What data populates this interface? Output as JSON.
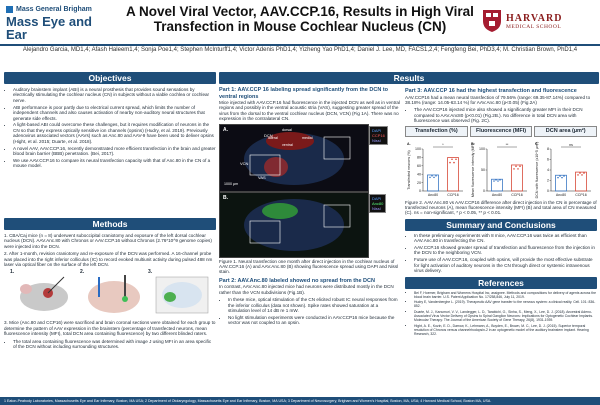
{
  "header": {
    "mgb_top": "Mass General Brigham",
    "mgb_bottom": "Mass Eye and Ear",
    "title": "A Novel Viral Vector, AAV.CCP.16, Results in High Viral Transfection in Mouse Cochlear Nucleus (CN)",
    "harvard_main": "HARVARD",
    "harvard_sub": "MEDICAL SCHOOL"
  },
  "authors": "Alejandro Garcia, MD1,4; Afash Haleem1,4; Sonja Poe1,4; Stephen McInturff1,4; Victor Adenis PhD1,4; Yizheng Yao PhD1,4; Daniel J. Lee, MD, FACS1,2,4; Fengfeng Bei, PhD3,4; M. Christian Brown, PhD1,4",
  "objectives": {
    "heading": "Objectives",
    "bullets": [
      "Auditory brainstem implant (ABI) is a neural prosthesis that provides sound sensations by electrically stimulating the cochlear nucleus (CN) in subjects without a viable cochlea or cochlear nerve.",
      "ABI performance is poor partly due to electrical current spread, which limits the number of independent channels and also causes activation of nearby non-auditory neural structures that generate side effects.",
      "A light-based ABI could overcome these challenges, but it requires modification of neurons in the CN so that they express optically sensitive ion channels (opsins) (Hudry, et al. 2019). Previously adenovirus associated vectors (AAVs) such as Anc.80 and AAV-9 have been used to deliver opsins (Hight, et al. 2015; Duarte, et al. 2018).",
      "A novel AAV, AAV.CCP.16, recently demonstrated more efficient transfection in the brain and greater blood brain barrier (BBB) penetration. (Bei, 2017).",
      "We use AAV.CCP.16 to compare its neural transfection capacity with that of Anc.80 in the CN of a mouse model."
    ]
  },
  "methods": {
    "heading": "Methods",
    "steps": [
      "1.  CBA/Caj mice (n = 8) underwent suboccipital craniotomy and exposure of the left dorsal cochlear nucleus (DCN). AAV.Anc.80 with Chronos or AAV.CCP.16 without Chronos (2.76*10^9 genome copies) were injected into the DCN.",
      "2.  After 1-month, revision craniotomy and re-exposure of the DCN was performed. A 16-channel probe was placed into the right inferior colliculus (IC) to record evoked multiunit activity during pulsed 488 nm laser via optical fiber on the surface of the left DCN.",
      "3.  Mice (Anc.80 and CCP16) were sacrificed and brain coronal sections were obtained for each group to determine the pattern of AAV expression in the brainstem (percentage of transfected neurons, mean fluorescence intensity (MFI), total DCN area containing fluorescence) by two different blinded raters."
    ],
    "sub_bullet": "The total area containing fluorescence was determined with image J using MFI in an area specific of the DCN without including surrounding structures.",
    "fig_labels": [
      "1.",
      "2.",
      "3."
    ]
  },
  "results": {
    "heading": "Results",
    "part1_title": "Part 1: AAV.CCP 16 labeling spread significantly from the DCN to ventral regions",
    "part1_text": "Mice injected with AAV.CCP.16 had fluorescence in the injected DCN as well as in ventral regions and possibly in the ventral acoustic stria (VAS), suggesting greater spread of the virus from the dorsal to the ventral cochlear nucleus (DCN, VCN) (Fig 1A). There was no expression in the contralateral CN.",
    "fig1_caption": "Figure 1. Neural transfection one month after direct injection in the cochlear nucleus of AAV.CCP.16 (A) and AAV.Anc.80 (B) showing fluorescence spread using DAPI and Nissl stain.",
    "part2_title": "Part 2: AAV.Anc.80 labeled showed no spread from the DCN",
    "part2_text": "In contrast, AAV.Anc.80 injected mice had neurons were distributed mostly in the DCN rather than the VCN subdivisions (Fig.1B).",
    "part2_bullets": [
      "In these mice, optical stimulation of the CN elicited robust IC neural responses from the inferior colliculus (data not shown). Spike rates showed saturation at a stimulation level of 14 dB re 1 mW.",
      "No light stimulation experiments were conducted in AAV.CCP16 mice because the vector was not coupled to an opsin."
    ],
    "part3_title": "Part 3: AAV.CCP 16 had the highest transfection and fluorescence",
    "part3_text": "AAV.CCP16 had a mean neural transfection of 79.56% (range: 69.35-87.14%) compared to 38.18% (range: 14.05-63.14 %) for AAV.Anc.80 (p<0.05) (Fig.2A)",
    "part3_bullets": [
      "The AAV.CCP16 injected mice also showed a significantly greater MFI in their DCN compared to AAV.Anc80 (p<0.01) (Fig.2B.). No difference in total DCN area with fluorescence was observed (Fig. 2C)."
    ],
    "panel_headers": [
      "Transfection (%)",
      "Fluorescence (MFI)",
      "DCN area (µm²)"
    ],
    "fig2_caption": "Figure 2. AAV.Anc.80 vs AAV.CCP16 difference after direct injection in the CN in percentage of transfected neurons (A), mean fluorescence intensity (MFI) (B) and total area of CN measured (C). ns = non-significant, * p < 0.05, ** p < 0.01.",
    "fig1_panel_labels": [
      "A.",
      "B."
    ],
    "fig1_structure_labels": [
      "DCN",
      "VCN",
      "VAS",
      "lateral",
      "medial",
      "dorsal",
      "ventral",
      "1000 µm"
    ],
    "fig1_legend": [
      "DAPI",
      "CCP16",
      "Anc80",
      "Nissl"
    ]
  },
  "summary": {
    "heading": "Summary and Conclusions",
    "bullets": [
      "In these preliminary experiments with 8 mice, AAV.CCP.16 was twice as efficient than AAV.Anc.80 in transfecting the CN.",
      "AAV.CCP.16 showed greater spread of transfection and fluorescence from the injection in the DCN to the neighboring VCN.",
      "Future use of AAV.CCP.16, coupled with opsins, will provide the most effective substrate for light activation of auditory neurons in the CN through direct or systemic intravenous virus delivery."
    ]
  },
  "references": {
    "heading": "References",
    "items": [
      "Bei F, Hoemer, Brigham and Womens Hospital Inc, assignee. Methods and compositions for delivery of agents across the blood brain barrier. U.S. Patent Application No. 17/258,846, July 11, 2019.",
      "Hudry E, Vandenberghe L. (2019). Therapeutic AAV gene transfer to the nervous system: a clinical reality. Cell. 101: 836-852.",
      "Duarte, M. J., Kanumuri, V. V., Landegger, L. D., Tarabichi, O., Sinha, S., Meng, X., Lee, D. J. (2018). Ancestral Adeno-Associated Virus Vector Delivery of Opsins to Spiral Ganglion Neurons: Implications for Optogenetic Cochlear Implants. Molecular Therapy: The Journal of the American Society of Gene Therapy, 26(8), 1931-1939.",
      "Hight, A. E., Kozin, E. D., Darrow, K., Lehmann, A., Boyden, E., Brown, M. C., Lee, D. J. (2015). Superior temporal resolution of Chronos versus channelrhodopsin-2 in an optogenetic model of the auditory brainstem implant. Hearing Research, 322."
    ]
  },
  "footer": "1 Eaton-Peabody Laboratories, Massachusetts Eye and Ear Infirmary, Boston, MA USA; 2 Department of Otolaryngology, Massachusetts Eye and Ear Infirmary, Boston, MA USA; 3 Department of Neurosurgery, Brigham and Women's Hospital, Boston, MA, USA; 4 Harvard Medical School, Boston MA, USA.",
  "chart_data": [
    {
      "type": "bar",
      "title": "A.",
      "categories": [
        "Anc80",
        "CCP16"
      ],
      "values": [
        38.18,
        79.56
      ],
      "ylabel": "Transfected neurons (%)",
      "ylim": [
        0,
        100
      ],
      "yticks": [
        "0",
        "20",
        "40",
        "60",
        "80",
        "100"
      ],
      "significance": "*",
      "colors": [
        "#3b78c4",
        "#d84a3a"
      ]
    },
    {
      "type": "bar",
      "title": "B.",
      "categories": [
        "Anc80",
        "CCP16"
      ],
      "values": [
        28,
        62
      ],
      "ylabel": "Mean fluorescence intensity (MFI)",
      "ylim": [
        0,
        100
      ],
      "yticks": [
        "0",
        "50",
        "100"
      ],
      "significance": "**",
      "colors": [
        "#3b78c4",
        "#d84a3a"
      ]
    },
    {
      "type": "bar",
      "title": "C.",
      "categories": [
        "Anc80",
        "CCP16"
      ],
      "values": [
        3.0,
        3.6
      ],
      "ylabel": "DCN with fluorescence (x10^5 µm²)",
      "ylim": [
        0,
        8
      ],
      "yticks": [
        "0",
        "2",
        "4",
        "6",
        "8"
      ],
      "significance": "ns",
      "colors": [
        "#3b78c4",
        "#d84a3a"
      ]
    }
  ]
}
